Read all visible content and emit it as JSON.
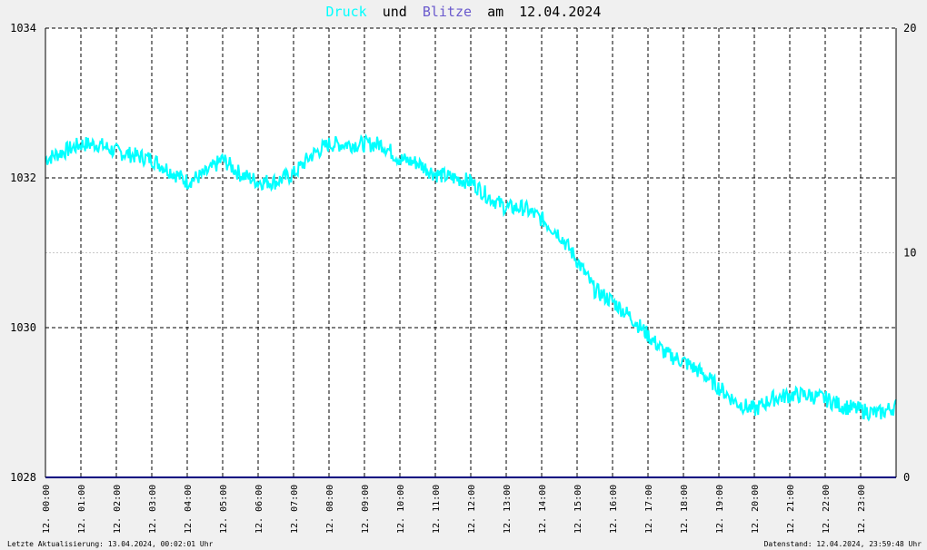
{
  "title": {
    "series1": "Druck",
    "joiner": "und",
    "series2": "Blitze",
    "date_prefix": "am",
    "date": "12.04.2024"
  },
  "colors": {
    "pressure": "#00ffff",
    "lightning": "#6a5acd",
    "baseline": "#000080",
    "title_text": "#000000",
    "grid": "#000000",
    "plot_bg": "#ffffff",
    "page_bg": "#f0f0f0"
  },
  "footer": {
    "left": "Letzte Aktualisierung: 13.04.2024, 00:02:01 Uhr",
    "right": "Datenstand: 12.04.2024, 23:59:48 Uhr"
  },
  "chart_data": {
    "type": "line",
    "x_unit": "hour",
    "xlim": [
      0,
      24
    ],
    "x_tick_labels": [
      "12. 00:00",
      "12. 01:00",
      "12. 02:00",
      "12. 03:00",
      "12. 04:00",
      "12. 05:00",
      "12. 06:00",
      "12. 07:00",
      "12. 08:00",
      "12. 09:00",
      "12. 10:00",
      "12. 11:00",
      "12. 12:00",
      "12. 13:00",
      "12. 14:00",
      "12. 15:00",
      "12. 16:00",
      "12. 17:00",
      "12. 18:00",
      "12. 19:00",
      "12. 20:00",
      "12. 21:00",
      "12. 22:00",
      "12. 23:00"
    ],
    "y_left": {
      "lim": [
        1028,
        1034
      ],
      "ticks": [
        "1028",
        "1030",
        "1032",
        "1034"
      ]
    },
    "y_right": {
      "lim": [
        0,
        20
      ],
      "ticks": [
        "0",
        "10",
        "20"
      ]
    },
    "grid": true,
    "series": [
      {
        "name": "Druck",
        "axis": "left",
        "x": [
          0,
          0.5,
          1,
          1.5,
          2,
          2.5,
          3,
          3.5,
          4,
          4.5,
          5,
          5.5,
          6,
          6.5,
          7,
          7.5,
          8,
          8.5,
          9,
          9.5,
          10,
          10.5,
          11,
          11.5,
          12,
          12.5,
          13,
          13.5,
          14,
          14.5,
          15,
          15.5,
          16,
          16.5,
          17,
          17.5,
          18,
          18.5,
          19,
          19.5,
          20,
          20.5,
          21,
          21.5,
          22,
          22.5,
          23,
          23.5,
          24
        ],
        "values": [
          1032.25,
          1032.35,
          1032.45,
          1032.45,
          1032.35,
          1032.3,
          1032.25,
          1032.1,
          1031.95,
          1032.05,
          1032.25,
          1032.05,
          1031.95,
          1031.95,
          1032.05,
          1032.3,
          1032.45,
          1032.45,
          1032.45,
          1032.45,
          1032.25,
          1032.2,
          1032.05,
          1032.0,
          1031.95,
          1031.75,
          1031.6,
          1031.6,
          1031.45,
          1031.25,
          1030.9,
          1030.5,
          1030.35,
          1030.15,
          1029.9,
          1029.65,
          1029.55,
          1029.4,
          1029.2,
          1029.0,
          1028.9,
          1029.05,
          1029.1,
          1029.1,
          1029.05,
          1028.95,
          1028.9,
          1028.85,
          1028.95
        ]
      },
      {
        "name": "Blitze",
        "axis": "right",
        "x": [
          0,
          24
        ],
        "values": [
          0,
          0
        ]
      }
    ]
  }
}
